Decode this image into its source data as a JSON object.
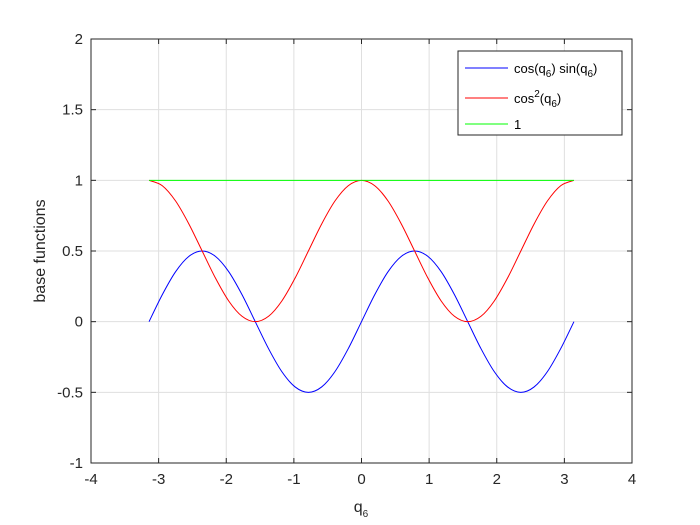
{
  "chart_data": {
    "type": "line",
    "title": "",
    "xlabel": {
      "base": "q",
      "sub": "6"
    },
    "ylabel": "base functions",
    "xlim": [
      -4,
      4
    ],
    "ylim": [
      -1,
      2
    ],
    "xticks": [
      "-4",
      "-3",
      "-2",
      "-1",
      "0",
      "1",
      "2",
      "3",
      "4"
    ],
    "yticks": [
      "-1",
      "-0.5",
      "0",
      "0.5",
      "1",
      "1.5",
      "2"
    ],
    "grid": true,
    "legend_position": "top-right",
    "x": [
      -3.1416,
      -2.9452,
      -2.7489,
      -2.5525,
      -2.3562,
      -2.1598,
      -1.9635,
      -1.7671,
      -1.5708,
      -1.3744,
      -1.1781,
      -0.9817,
      -0.7854,
      -0.589,
      -0.3927,
      -0.1963,
      0.0,
      0.1963,
      0.3927,
      0.589,
      0.7854,
      0.9817,
      1.1781,
      1.3744,
      1.5708,
      1.7671,
      1.9635,
      2.1598,
      2.3562,
      2.5525,
      2.7489,
      2.9452,
      3.1416
    ],
    "series": [
      {
        "name_parts": [
          "cos(q",
          "6",
          ") sin(q",
          "6",
          ")"
        ],
        "color": "#0000ff",
        "values": [
          0.0,
          0.1913,
          0.3536,
          0.4619,
          0.5,
          0.4619,
          0.3536,
          0.1913,
          0.0,
          -0.1913,
          -0.3536,
          -0.4619,
          -0.5,
          -0.4619,
          -0.3536,
          -0.1913,
          0.0,
          0.1913,
          0.3536,
          0.4619,
          0.5,
          0.4619,
          0.3536,
          0.1913,
          0.0,
          -0.1913,
          -0.3536,
          -0.4619,
          -0.5,
          -0.4619,
          -0.3536,
          -0.1913,
          0.0
        ]
      },
      {
        "name_parts": [
          "cos",
          "2",
          "(q",
          "6",
          ")"
        ],
        "color": "#ff0000",
        "values": [
          1.0,
          0.9619,
          0.8536,
          0.6913,
          0.5,
          0.3087,
          0.1464,
          0.0381,
          0.0,
          0.0381,
          0.1464,
          0.3087,
          0.5,
          0.6913,
          0.8536,
          0.9619,
          1.0,
          0.9619,
          0.8536,
          0.6913,
          0.5,
          0.3087,
          0.1464,
          0.0381,
          0.0,
          0.0381,
          0.1464,
          0.3087,
          0.5,
          0.6913,
          0.8536,
          0.9619,
          1.0
        ]
      },
      {
        "name_parts": [
          "1"
        ],
        "color": "#00ff00",
        "values": [
          1,
          1,
          1,
          1,
          1,
          1,
          1,
          1,
          1,
          1,
          1,
          1,
          1,
          1,
          1,
          1,
          1,
          1,
          1,
          1,
          1,
          1,
          1,
          1,
          1,
          1,
          1,
          1,
          1,
          1,
          1,
          1,
          1
        ]
      }
    ]
  }
}
